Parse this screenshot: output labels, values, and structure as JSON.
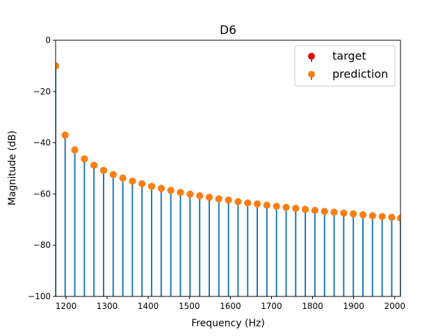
{
  "chart_data": {
    "type": "scatter",
    "title": "D6",
    "xlabel": "Frequency (Hz)",
    "ylabel": "Magnitude (dB)",
    "xlim": [
      1174.66,
      2014.0
    ],
    "ylim": [
      -100,
      0
    ],
    "xticks": [
      1200,
      1300,
      1400,
      1500,
      1600,
      1700,
      1800,
      1900,
      2000
    ],
    "yticks": [
      0,
      -20,
      -40,
      -60,
      -80,
      -100
    ],
    "grid": false,
    "legend_position": "top-right",
    "baseline": -100,
    "x": [
      1174.66,
      1197.9,
      1221.3,
      1244.7,
      1268.0,
      1291.4,
      1314.8,
      1338.2,
      1361.5,
      1384.9,
      1408.3,
      1431.7,
      1455.0,
      1478.4,
      1501.8,
      1525.2,
      1548.6,
      1571.9,
      1595.3,
      1618.7,
      1642.1,
      1665.4,
      1688.8,
      1712.2,
      1735.6,
      1758.9,
      1782.3,
      1805.7,
      1829.1,
      1852.4,
      1875.8,
      1899.2,
      1922.6,
      1945.9,
      1969.3,
      1992.7,
      2014.0
    ],
    "series": [
      {
        "name": "target",
        "color": "#e8000b",
        "values": [
          -10,
          -37,
          -42.8,
          -46.3,
          -48.8,
          -50.8,
          -52.4,
          -53.8,
          -55.0,
          -56.0,
          -57.0,
          -57.8,
          -58.6,
          -59.4,
          -60.1,
          -60.7,
          -61.3,
          -61.9,
          -62.4,
          -63.0,
          -63.5,
          -63.9,
          -64.4,
          -64.8,
          -65.2,
          -65.6,
          -66.0,
          -66.4,
          -66.8,
          -67.1,
          -67.5,
          -67.8,
          -68.1,
          -68.5,
          -68.8,
          -69.1,
          -69.4
        ]
      },
      {
        "name": "prediction",
        "color": "#ff7f0e",
        "values": [
          -10,
          -37,
          -42.8,
          -46.3,
          -48.8,
          -50.8,
          -52.4,
          -53.8,
          -55.0,
          -56.0,
          -57.0,
          -57.8,
          -58.6,
          -59.4,
          -60.1,
          -60.7,
          -61.3,
          -61.9,
          -62.4,
          -63.0,
          -63.5,
          -63.9,
          -64.4,
          -64.8,
          -65.2,
          -65.6,
          -66.0,
          -66.4,
          -66.8,
          -67.1,
          -67.5,
          -67.8,
          -68.1,
          -68.5,
          -68.8,
          -69.1,
          -69.4
        ]
      }
    ],
    "stem_color": "#1f77b4"
  }
}
